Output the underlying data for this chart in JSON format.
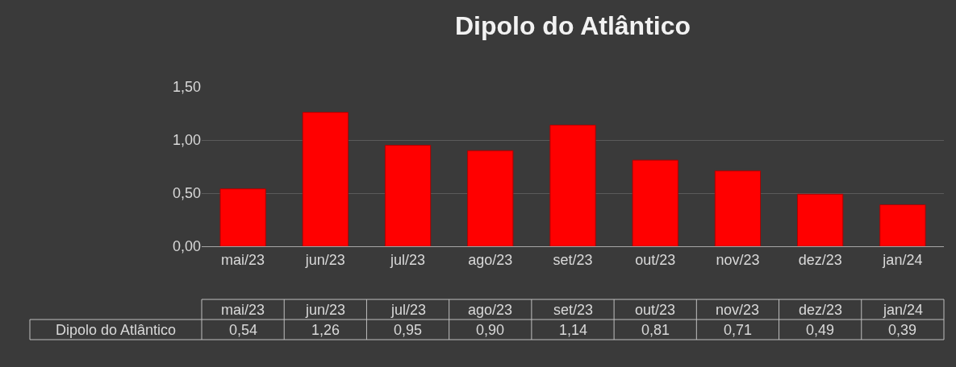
{
  "chart_data": {
    "type": "bar",
    "title": "Dipolo do Atlântico",
    "categories": [
      "mai/23",
      "jun/23",
      "jul/23",
      "ago/23",
      "set/23",
      "out/23",
      "nov/23",
      "dez/23",
      "jan/24"
    ],
    "series": [
      {
        "name": "Dipolo do Atlântico",
        "color": "#ff0000",
        "values": [
          0.54,
          1.26,
          0.95,
          0.9,
          1.14,
          0.81,
          0.71,
          0.49,
          0.39
        ],
        "value_labels": [
          "0,54",
          "1,26",
          "0,95",
          "0,90",
          "1,14",
          "0,81",
          "0,71",
          "0,49",
          "0,39"
        ]
      }
    ],
    "ylim": [
      0,
      1.5
    ],
    "yticks": [
      {
        "value": 0,
        "label": "0,00"
      },
      {
        "value": 0.5,
        "label": "0,50"
      },
      {
        "value": 1,
        "label": "1,00"
      },
      {
        "value": 1.5,
        "label": "1,50"
      }
    ],
    "grid": "y",
    "legend": false
  }
}
